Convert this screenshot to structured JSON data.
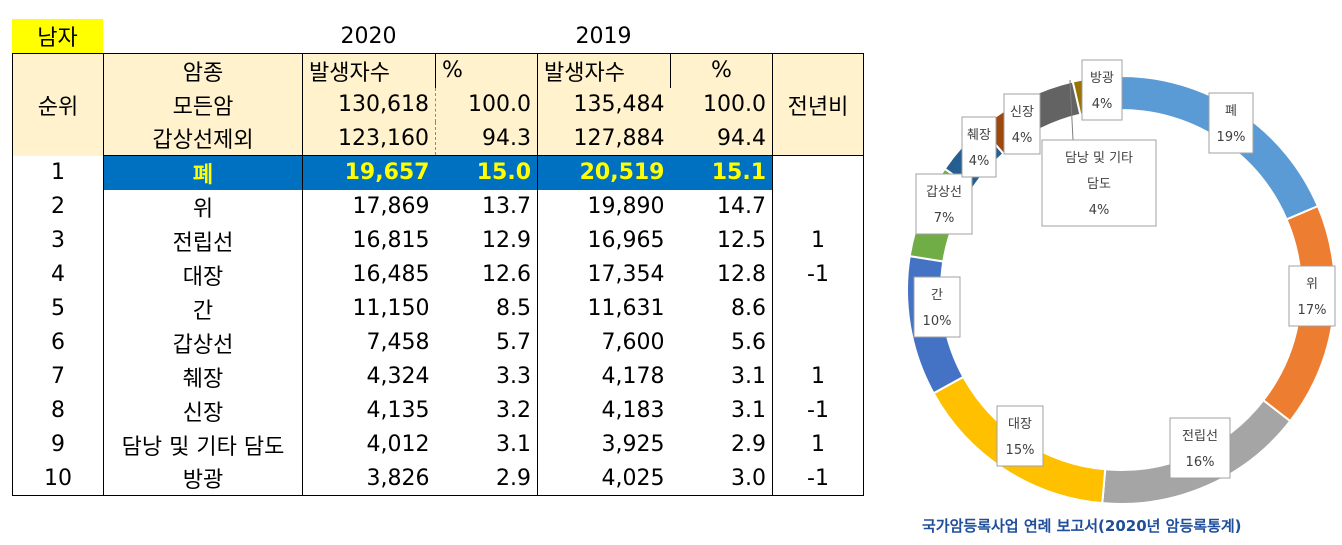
{
  "gender_tag": "남자",
  "years": [
    "2020",
    "2019"
  ],
  "header": {
    "cancer_type": "암종",
    "count": "발생자수",
    "percent": "%",
    "rank": "순위",
    "prev_year_compare": "전년비"
  },
  "summary_rows": [
    {
      "label": "모든암",
      "c2020": "130,618",
      "p2020": "100.0",
      "c2019": "135,484",
      "p2019": "100.0"
    },
    {
      "label": "갑상선제외",
      "c2020": "123,160",
      "p2020": "94.3",
      "c2019": "127,884",
      "p2019": "94.4"
    }
  ],
  "rows": [
    {
      "rank": "1",
      "name": "폐",
      "c2020": "19,657",
      "p2020": "15.0",
      "c2019": "20,519",
      "p2019": "15.1",
      "change": ""
    },
    {
      "rank": "2",
      "name": "위",
      "c2020": "17,869",
      "p2020": "13.7",
      "c2019": "19,890",
      "p2019": "14.7",
      "change": ""
    },
    {
      "rank": "3",
      "name": "전립선",
      "c2020": "16,815",
      "p2020": "12.9",
      "c2019": "16,965",
      "p2019": "12.5",
      "change": "1"
    },
    {
      "rank": "4",
      "name": "대장",
      "c2020": "16,485",
      "p2020": "12.6",
      "c2019": "17,354",
      "p2019": "12.8",
      "change": "-1"
    },
    {
      "rank": "5",
      "name": "간",
      "c2020": "11,150",
      "p2020": "8.5",
      "c2019": "11,631",
      "p2019": "8.6",
      "change": ""
    },
    {
      "rank": "6",
      "name": "갑상선",
      "c2020": "7,458",
      "p2020": "5.7",
      "c2019": "7,600",
      "p2019": "5.6",
      "change": ""
    },
    {
      "rank": "7",
      "name": "췌장",
      "c2020": "4,324",
      "p2020": "3.3",
      "c2019": "4,178",
      "p2019": "3.1",
      "change": "1"
    },
    {
      "rank": "8",
      "name": "신장",
      "c2020": "4,135",
      "p2020": "3.2",
      "c2019": "4,183",
      "p2019": "3.1",
      "change": "-1"
    },
    {
      "rank": "9",
      "name": "담낭 및 기타 담도",
      "c2020": "4,012",
      "p2020": "3.1",
      "c2019": "3,925",
      "p2019": "2.9",
      "change": "1"
    },
    {
      "rank": "10",
      "name": "방광",
      "c2020": "3,826",
      "p2020": "2.9",
      "c2019": "4,025",
      "p2019": "3.0",
      "change": "-1"
    }
  ],
  "chart_data": {
    "type": "pie",
    "style": "donut",
    "categories": [
      "폐",
      "위",
      "전립선",
      "대장",
      "간",
      "갑상선",
      "췌장",
      "신장",
      "담낭 및 기타 담도",
      "방광"
    ],
    "values": [
      19657,
      17869,
      16815,
      16485,
      11150,
      7458,
      4324,
      4135,
      4012,
      3826
    ],
    "labels": [
      {
        "name": "폐",
        "pct": "19%"
      },
      {
        "name": "위",
        "pct": "17%"
      },
      {
        "name": "전립선",
        "pct": "16%"
      },
      {
        "name": "대장",
        "pct": "15%"
      },
      {
        "name": "간",
        "pct": "10%"
      },
      {
        "name": "갑상선",
        "pct": "7%"
      },
      {
        "name": "췌장",
        "pct": "4%"
      },
      {
        "name": "신장",
        "pct": "4%"
      },
      {
        "name": "담낭 및 기타 담도",
        "pct": "4%"
      },
      {
        "name": "방광",
        "pct": "4%"
      }
    ],
    "colors": [
      "#5b9bd5",
      "#ed7d31",
      "#a5a5a5",
      "#ffc000",
      "#4472c4",
      "#70ad47",
      "#255e91",
      "#9e480e",
      "#636363",
      "#997300"
    ],
    "title": "",
    "legend": "none"
  },
  "source": "국가암등록사업 연례 보고서(2020년 암등록통계)"
}
